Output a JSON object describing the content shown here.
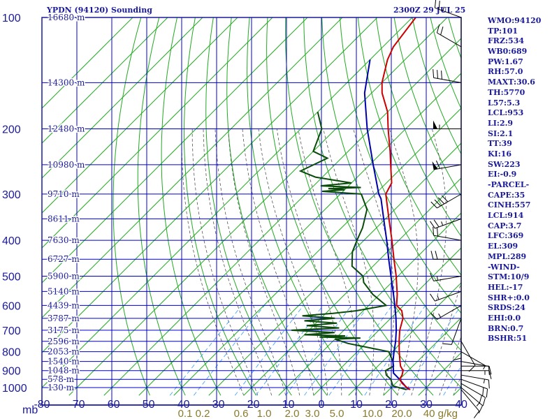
{
  "header": {
    "station": "YPDN (94120) Sounding",
    "datetime": "2300Z 29 JUL 25"
  },
  "colors": {
    "frame": "#1a1a9a",
    "grid": "#0000cc",
    "dry_adiabat": "#22aa22",
    "moist_adiabat": "#555555",
    "mixing_ratio": "#3399ff",
    "temperature": "#cc0000",
    "dewpoint": "#0a4a0a",
    "parcel": "#0000aa",
    "axis_text": "#1a1a9a",
    "mixing_ratio_text": "#8a7a2a"
  },
  "stats": [
    "WMO:94120",
    "TP:101",
    "FRZ:534",
    "WB0:689",
    "PW:1.67",
    "RH:57.0",
    "MAXT:30.6",
    "TH:5770",
    "L57:5.3",
    "LCL:953",
    "LI:2.9",
    "SI:2.1",
    "TT:39",
    "KI:16",
    "SW:223",
    "EI:-0.9",
    "-PARCEL-",
    "CAPE:35",
    "CINH:557",
    "LCL:914",
    "CAP:3.7",
    "LFC:369",
    "EL:309",
    "MPL:289",
    "-WIND-",
    "STM:10/9",
    "HEL:-17",
    "SHR+:0.0",
    "SRDS:24",
    "EHI:0.0",
    "BRN:0.7",
    "BSHR:51"
  ],
  "chart_data": {
    "type": "skew-t",
    "xlabel_unit": "mb",
    "xlim": [
      -80,
      40
    ],
    "ylim": [
      1000,
      100
    ],
    "pressure_ticks": [
      100,
      200,
      300,
      400,
      500,
      600,
      700,
      800,
      900,
      1000
    ],
    "temperature_ticks": [
      -80,
      -70,
      -60,
      -50,
      -40,
      -30,
      -20,
      -10,
      0,
      10,
      20,
      30,
      40
    ],
    "height_labels": [
      {
        "p": 100,
        "label": "16680 m"
      },
      {
        "p": 150,
        "label": "14300 m"
      },
      {
        "p": 200,
        "label": "12480 m"
      },
      {
        "p": 250,
        "label": "10980 m"
      },
      {
        "p": 300,
        "label": "9710 m"
      },
      {
        "p": 350,
        "label": "8611 m"
      },
      {
        "p": 400,
        "label": "7630 m"
      },
      {
        "p": 450,
        "label": "6727 m"
      },
      {
        "p": 500,
        "label": "5900 m"
      },
      {
        "p": 550,
        "label": "5140 m"
      },
      {
        "p": 600,
        "label": "4439 m"
      },
      {
        "p": 650,
        "label": "3787 m"
      },
      {
        "p": 700,
        "label": "3175 m"
      },
      {
        "p": 750,
        "label": "2596 m"
      },
      {
        "p": 800,
        "label": "2053 m"
      },
      {
        "p": 850,
        "label": "1540 m"
      },
      {
        "p": 900,
        "label": "1048 m"
      },
      {
        "p": 950,
        "label": "578 m"
      },
      {
        "p": 1000,
        "label": "130 m"
      }
    ],
    "mixing_ratio_labels": [
      "0.1",
      "0.2",
      "0.6",
      "1.0",
      "2.0",
      "3.0",
      "5.0",
      "10.0",
      "20.0",
      "40 g/kg"
    ],
    "mixing_ratio_values": [
      0.1,
      0.2,
      0.6,
      1.0,
      2.0,
      3.0,
      5.0,
      10.0,
      20.0,
      40.0
    ],
    "temperature_profile": [
      [
        1013,
        26.0
      ],
      [
        1000,
        24.5
      ],
      [
        975,
        22.0
      ],
      [
        950,
        20.0
      ],
      [
        925,
        19.5
      ],
      [
        900,
        18.5
      ],
      [
        875,
        16.5
      ],
      [
        850,
        15.0
      ],
      [
        800,
        12.0
      ],
      [
        750,
        9.0
      ],
      [
        700,
        6.0
      ],
      [
        650,
        3.5
      ],
      [
        620,
        1.0
      ],
      [
        600,
        -2.0
      ],
      [
        560,
        -5.0
      ],
      [
        500,
        -10.5
      ],
      [
        450,
        -16.0
      ],
      [
        400,
        -22.0
      ],
      [
        350,
        -29.0
      ],
      [
        300,
        -37.0
      ],
      [
        280,
        -38.5
      ],
      [
        250,
        -44.0
      ],
      [
        230,
        -48.0
      ],
      [
        200,
        -55.0
      ],
      [
        180,
        -60.0
      ],
      [
        160,
        -67.0
      ],
      [
        150,
        -70.0
      ],
      [
        130,
        -75.0
      ],
      [
        120,
        -77.0
      ],
      [
        100,
        -79.0
      ]
    ],
    "dewpoint_profile": [
      [
        1013,
        25.0
      ],
      [
        990,
        20.0
      ],
      [
        950,
        17.5
      ],
      [
        925,
        15.0
      ],
      [
        900,
        13.5
      ],
      [
        875,
        14.5
      ],
      [
        850,
        13.0
      ],
      [
        800,
        9.0
      ],
      [
        760,
        -5.0
      ],
      [
        740,
        -10.0
      ],
      [
        735,
        -3.0
      ],
      [
        730,
        -15.0
      ],
      [
        725,
        -8.0
      ],
      [
        720,
        -20.0
      ],
      [
        710,
        -12.0
      ],
      [
        700,
        -25.0
      ],
      [
        690,
        -12.0
      ],
      [
        680,
        -22.0
      ],
      [
        670,
        -14.0
      ],
      [
        660,
        -24.0
      ],
      [
        650,
        -16.0
      ],
      [
        640,
        -26.0
      ],
      [
        630,
        -18.0
      ],
      [
        620,
        -12.0
      ],
      [
        600,
        -5.0
      ],
      [
        560,
        -12.0
      ],
      [
        520,
        -18.0
      ],
      [
        500,
        -20.0
      ],
      [
        470,
        -26.0
      ],
      [
        430,
        -30.0
      ],
      [
        400,
        -32.0
      ],
      [
        370,
        -34.0
      ],
      [
        330,
        -38.0
      ],
      [
        300,
        -44.0
      ],
      [
        295,
        -56.0
      ],
      [
        292,
        -50.0
      ],
      [
        290,
        -55.0
      ],
      [
        288,
        -46.0
      ],
      [
        285,
        -58.0
      ],
      [
        280,
        -50.0
      ],
      [
        270,
        -62.0
      ],
      [
        260,
        -68.0
      ],
      [
        240,
        -64.0
      ],
      [
        230,
        -70.0
      ],
      [
        200,
        -74.0
      ],
      [
        180,
        -80.0
      ]
    ],
    "parcel_profile": [
      [
        1013,
        25.5
      ],
      [
        950,
        20.0
      ],
      [
        914,
        16.5
      ],
      [
        850,
        13.0
      ],
      [
        800,
        10.5
      ],
      [
        750,
        8.0
      ],
      [
        700,
        5.0
      ],
      [
        650,
        1.5
      ],
      [
        600,
        -2.5
      ],
      [
        550,
        -7.0
      ],
      [
        500,
        -12.0
      ],
      [
        450,
        -17.5
      ],
      [
        400,
        -23.5
      ],
      [
        350,
        -30.5
      ],
      [
        309,
        -37.0
      ],
      [
        300,
        -39.0
      ],
      [
        250,
        -49.0
      ],
      [
        200,
        -61.0
      ],
      [
        160,
        -72.0
      ],
      [
        130,
        -80.0
      ]
    ],
    "wind_profile": [
      {
        "p": 1013,
        "dir": 140,
        "spd": 10
      },
      {
        "p": 1000,
        "dir": 130,
        "spd": 15
      },
      {
        "p": 975,
        "dir": 120,
        "spd": 20
      },
      {
        "p": 950,
        "dir": 110,
        "spd": 20
      },
      {
        "p": 925,
        "dir": 100,
        "spd": 15
      },
      {
        "p": 900,
        "dir": 90,
        "spd": 15
      },
      {
        "p": 875,
        "dir": 90,
        "spd": 10
      },
      {
        "p": 850,
        "dir": 100,
        "spd": 10
      },
      {
        "p": 800,
        "dir": 120,
        "spd": 5
      },
      {
        "p": 750,
        "dir": 150,
        "spd": 10
      },
      {
        "p": 700,
        "dir": 180,
        "spd": 10
      },
      {
        "p": 650,
        "dir": 200,
        "spd": 10
      },
      {
        "p": 600,
        "dir": 240,
        "spd": 15
      },
      {
        "p": 550,
        "dir": 250,
        "spd": 15
      },
      {
        "p": 500,
        "dir": 260,
        "spd": 15
      },
      {
        "p": 450,
        "dir": 270,
        "spd": 20
      },
      {
        "p": 400,
        "dir": 280,
        "spd": 20
      },
      {
        "p": 350,
        "dir": 250,
        "spd": 25
      },
      {
        "p": 300,
        "dir": 240,
        "spd": 40
      },
      {
        "p": 250,
        "dir": 260,
        "spd": 60
      },
      {
        "p": 200,
        "dir": 270,
        "spd": 55
      },
      {
        "p": 150,
        "dir": 280,
        "spd": 30
      },
      {
        "p": 120,
        "dir": 300,
        "spd": 20
      },
      {
        "p": 100,
        "dir": 290,
        "spd": 25
      }
    ]
  }
}
